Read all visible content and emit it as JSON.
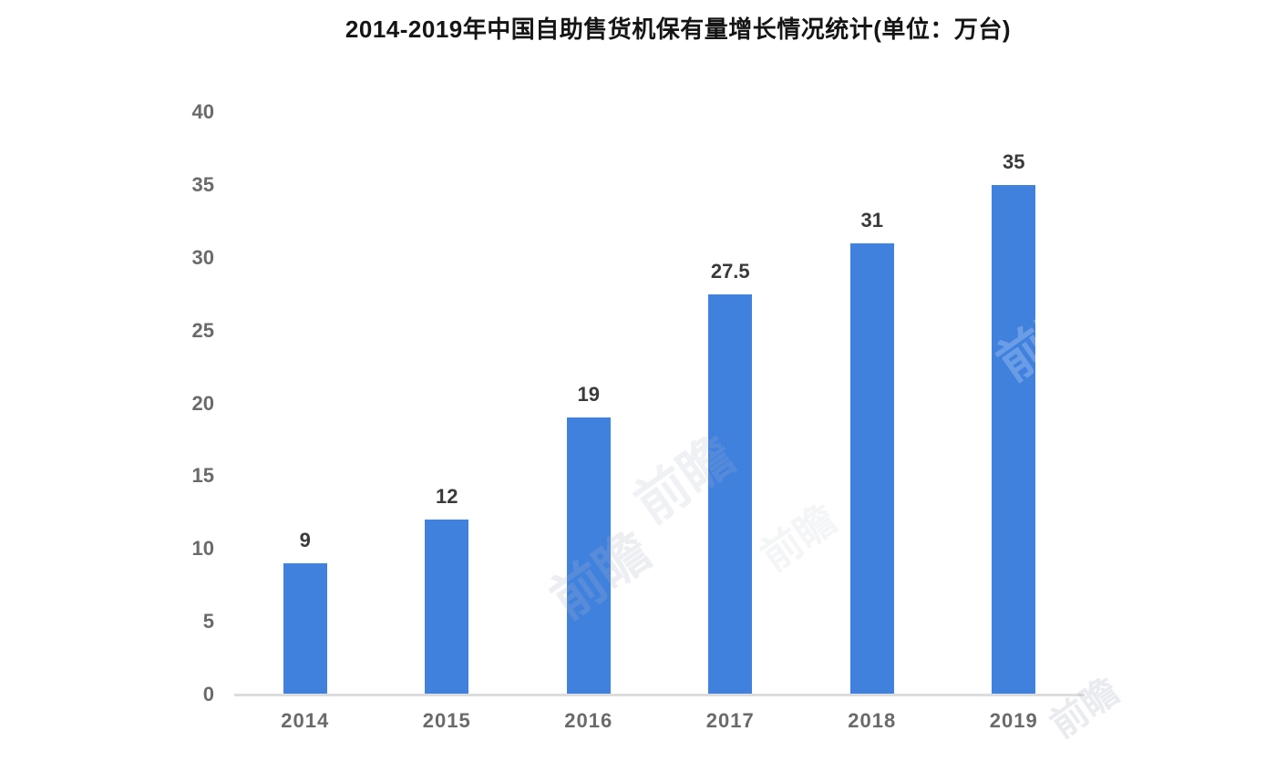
{
  "title": "2014-2019年中国自助售货机保有量增长情况统计(单位：万台)",
  "chart_data": {
    "type": "bar",
    "title": "2014-2019年中国自助售货机保有量增长情况统计(单位：万台)",
    "categories": [
      "2014",
      "2015",
      "2016",
      "2017",
      "2018",
      "2019"
    ],
    "values": [
      9,
      12,
      19,
      27.5,
      31,
      35
    ],
    "value_labels": [
      "9",
      "12",
      "19",
      "27.5",
      "31",
      "35"
    ],
    "xlabel": "",
    "ylabel": "",
    "ylim": [
      0,
      40
    ],
    "yticks": [
      0,
      5,
      10,
      15,
      20,
      25,
      30,
      35,
      40
    ],
    "grid": false,
    "legend": "none",
    "bar_color": "#4081de",
    "axis_line_color": "#dcdcdc",
    "tick_label_color": "#6a6a6a",
    "data_label_color": "#3a3a3a",
    "title_color": "#151515",
    "background": "#ffffff"
  },
  "watermark": {
    "text": "前瞻"
  }
}
